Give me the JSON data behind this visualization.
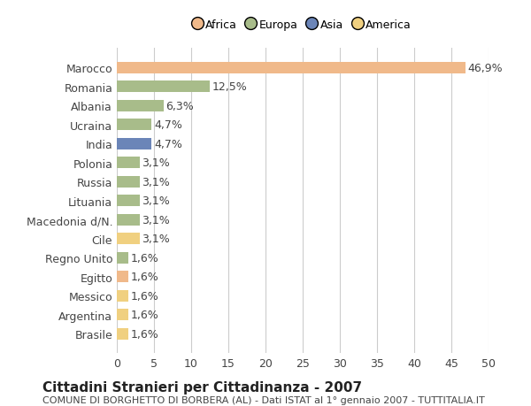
{
  "countries": [
    "Marocco",
    "Romania",
    "Albania",
    "Ucraina",
    "India",
    "Polonia",
    "Russia",
    "Lituania",
    "Macedonia d/N.",
    "Cile",
    "Regno Unito",
    "Egitto",
    "Messico",
    "Argentina",
    "Brasile"
  ],
  "values": [
    46.9,
    12.5,
    6.3,
    4.7,
    4.7,
    3.1,
    3.1,
    3.1,
    3.1,
    3.1,
    1.6,
    1.6,
    1.6,
    1.6,
    1.6
  ],
  "labels": [
    "46,9%",
    "12,5%",
    "6,3%",
    "4,7%",
    "4,7%",
    "3,1%",
    "3,1%",
    "3,1%",
    "3,1%",
    "3,1%",
    "1,6%",
    "1,6%",
    "1,6%",
    "1,6%",
    "1,6%"
  ],
  "colors": [
    "#f0b98a",
    "#a8bc8a",
    "#a8bc8a",
    "#a8bc8a",
    "#6b85b8",
    "#a8bc8a",
    "#a8bc8a",
    "#a8bc8a",
    "#a8bc8a",
    "#f0d080",
    "#a8bc8a",
    "#f0b98a",
    "#f0d080",
    "#f0d080",
    "#f0d080"
  ],
  "legend_labels": [
    "Africa",
    "Europa",
    "Asia",
    "America"
  ],
  "legend_colors": [
    "#f0b98a",
    "#a8bc8a",
    "#6b85b8",
    "#f0d080"
  ],
  "title": "Cittadini Stranieri per Cittadinanza - 2007",
  "subtitle": "COMUNE DI BORGHETTO DI BORBERA (AL) - Dati ISTAT al 1° gennaio 2007 - TUTTITALIA.IT",
  "xlim": [
    0,
    50
  ],
  "xticks": [
    0,
    5,
    10,
    15,
    20,
    25,
    30,
    35,
    40,
    45,
    50
  ],
  "background_color": "#ffffff",
  "grid_color": "#cccccc",
  "label_fontsize": 9,
  "tick_fontsize": 9,
  "title_fontsize": 11,
  "subtitle_fontsize": 8
}
